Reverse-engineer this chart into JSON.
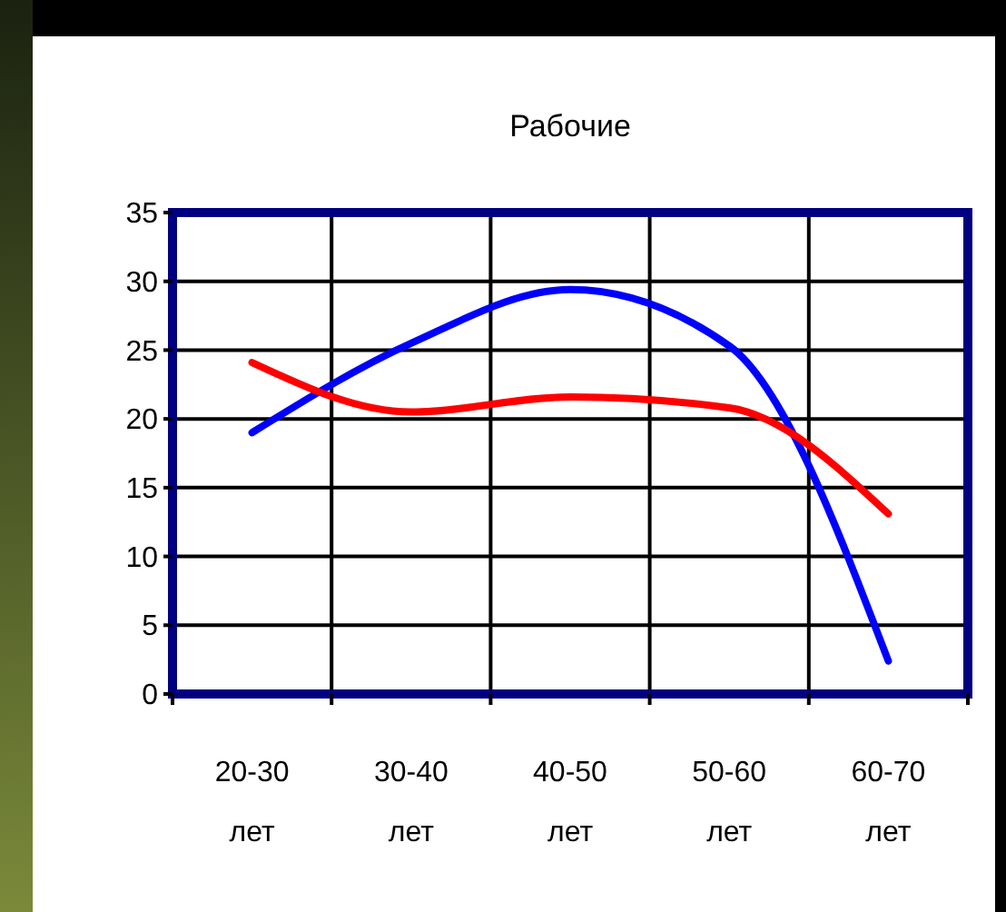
{
  "chart_data": {
    "type": "line",
    "title": "Рабочие",
    "categories": [
      "20-30 лет",
      "30-40 лет",
      "40-50 лет",
      "50-60 лет",
      "60-70 лет"
    ],
    "series": [
      {
        "color": "#0000ff",
        "values": [
          19,
          25.5,
          29.4,
          25.3,
          2.4
        ]
      },
      {
        "color": "#ff0000",
        "values": [
          24.1,
          20.5,
          21.6,
          20.8,
          13.1
        ]
      }
    ],
    "ylim": [
      0,
      35
    ],
    "yticks": [
      0,
      5,
      10,
      15,
      20,
      25,
      30,
      35
    ],
    "grid": true,
    "marker": "none",
    "line_style": "solid"
  }
}
